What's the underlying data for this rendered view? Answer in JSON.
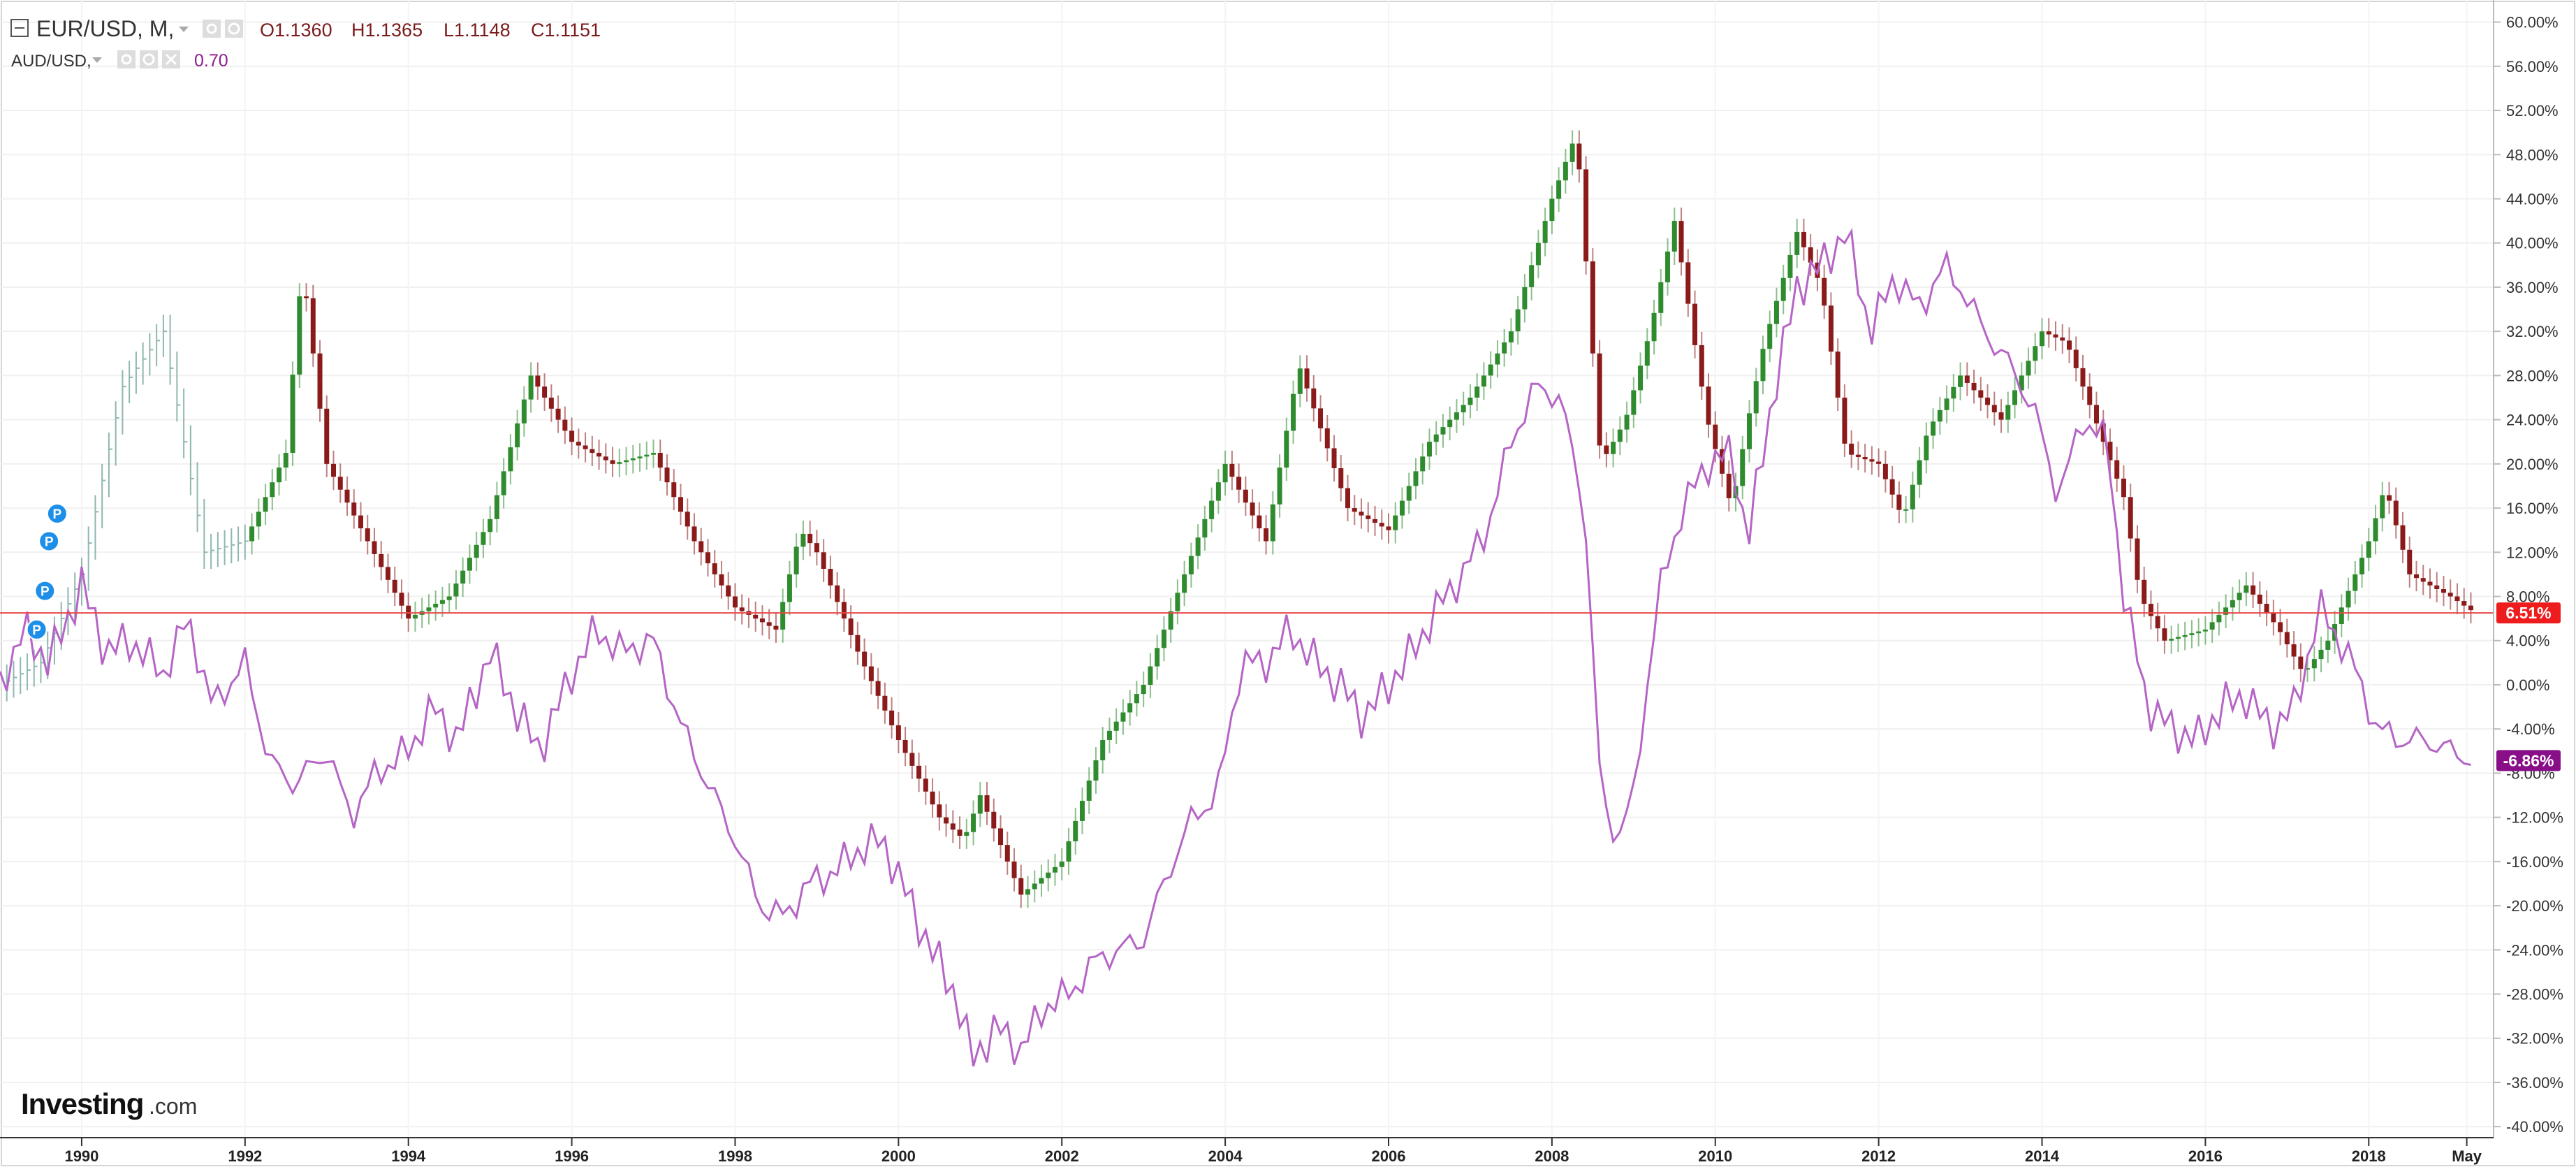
{
  "legend": {
    "main_symbol": "EUR/USD, M,",
    "open": "O1.1360",
    "high": "H1.1365",
    "low": "L1.1148",
    "close": "C1.1151",
    "compare_symbol": "AUD/USD,",
    "compare_value": "0.70"
  },
  "branding": {
    "logo_main": "Investing",
    "logo_suffix": ".com"
  },
  "colors": {
    "up_candle": "#2e8b2e",
    "down_candle": "#8b1a1a",
    "compare_line": "#b565c6",
    "last_price_line": "#e84a4a",
    "eur_tag": "#ee1c1c",
    "aud_tag": "#880f88",
    "pre_history_bar": "#8fb7b0"
  },
  "icons": [
    "collapse-icon",
    "dropdown-arrow-icon",
    "settings-icon",
    "eye-icon",
    "close-icon",
    "marker-p-icon"
  ],
  "chart_data": {
    "type": "line",
    "x_axis": {
      "ticks": [
        "1990",
        "1992",
        "1994",
        "1996",
        "1998",
        "2000",
        "2002",
        "2004",
        "2006",
        "2008",
        "2010",
        "2012",
        "2014",
        "2016",
        "2018",
        "May"
      ]
    },
    "y_axis": {
      "unit": "%",
      "range": [
        -41,
        62
      ],
      "ticks": [
        "60.00%",
        "56.00%",
        "52.00%",
        "48.00%",
        "44.00%",
        "40.00%",
        "36.00%",
        "32.00%",
        "28.00%",
        "24.00%",
        "20.00%",
        "16.00%",
        "12.00%",
        "8.00%",
        "4.00%",
        "0.00%",
        "-4.00%",
        "-8.00%",
        "-12.00%",
        "-16.00%",
        "-20.00%",
        "-24.00%",
        "-28.00%",
        "-32.00%",
        "-36.00%",
        "-40.00%"
      ],
      "tick_values": [
        60,
        56,
        52,
        48,
        44,
        40,
        36,
        32,
        28,
        24,
        20,
        16,
        12,
        8,
        4,
        0,
        -4,
        -8,
        -12,
        -16,
        -20,
        -24,
        -28,
        -32,
        -36,
        -40
      ]
    },
    "last_values": [
      {
        "label": "6.51%",
        "value": 6.51
      },
      {
        "label": "-6.86%",
        "value": -6.86
      }
    ],
    "series": [
      {
        "name": "EUR/USD",
        "style": "candlestick",
        "x": [
          1989.0,
          1989.5,
          1990.0,
          1990.5,
          1991.0,
          1991.5,
          1992.0,
          1992.5,
          1992.7,
          1993.0,
          1993.5,
          1994.0,
          1994.5,
          1995.0,
          1995.5,
          1996.0,
          1996.5,
          1997.0,
          1997.5,
          1998.0,
          1998.5,
          1998.8,
          1999.0,
          1999.5,
          2000.0,
          2000.5,
          2000.8,
          2001.0,
          2001.5,
          2002.0,
          2002.5,
          2003.0,
          2003.5,
          2004.0,
          2004.5,
          2004.9,
          2005.5,
          2006.0,
          2006.5,
          2007.0,
          2007.5,
          2008.0,
          2008.3,
          2008.6,
          2008.9,
          2009.2,
          2009.5,
          2009.9,
          2010.2,
          2010.4,
          2010.6,
          2011.0,
          2011.3,
          2011.6,
          2012.0,
          2012.3,
          2012.6,
          2013.0,
          2013.5,
          2014.0,
          2014.3,
          2014.6,
          2015.0,
          2015.2,
          2015.5,
          2016.0,
          2016.5,
          2016.9,
          2017.2,
          2017.5,
          2018.0,
          2018.2,
          2018.5,
          2019.0,
          2019.3
        ],
        "values": [
          0,
          2,
          10,
          27,
          32,
          12,
          13,
          21,
          38,
          20,
          13,
          6,
          8,
          15,
          28,
          22,
          20,
          21,
          13,
          7,
          5,
          14,
          12,
          3,
          -5,
          -12,
          -14,
          -10,
          -19,
          -16,
          -5,
          0,
          10,
          20,
          13,
          29,
          16,
          14,
          22,
          26,
          32,
          44,
          50,
          20,
          24,
          32,
          42,
          24,
          16,
          24,
          31,
          41,
          36,
          21,
          20,
          15,
          23,
          28,
          24,
          32,
          31,
          25,
          17,
          8,
          4,
          5,
          9,
          5,
          1,
          4,
          13,
          18,
          10,
          8,
          6.51
        ]
      },
      {
        "name": "AUD/USD",
        "style": "line",
        "x": [
          1989.0,
          1989.3,
          1989.6,
          1990.0,
          1990.3,
          1990.6,
          1991.0,
          1991.3,
          1991.6,
          1992.0,
          1992.3,
          1992.6,
          1993.0,
          1993.3,
          1993.6,
          1994.0,
          1994.3,
          1994.6,
          1995.0,
          1995.3,
          1995.6,
          1996.0,
          1996.3,
          1996.6,
          1997.0,
          1997.3,
          1997.6,
          1998.0,
          1998.3,
          1998.6,
          1998.9,
          1999.2,
          1999.5,
          1999.8,
          2000.1,
          2000.4,
          2000.7,
          2000.9,
          2001.2,
          2001.5,
          2001.8,
          2002.1,
          2002.4,
          2002.7,
          2003.0,
          2003.3,
          2003.6,
          2003.9,
          2004.2,
          2004.5,
          2004.8,
          2005.1,
          2005.4,
          2005.7,
          2006.0,
          2006.3,
          2006.6,
          2006.9,
          2007.2,
          2007.5,
          2007.8,
          2008.1,
          2008.4,
          2008.6,
          2008.8,
          2009.0,
          2009.3,
          2009.6,
          2009.9,
          2010.2,
          2010.4,
          2010.7,
          2011.0,
          2011.3,
          2011.6,
          2011.9,
          2012.2,
          2012.5,
          2012.8,
          2013.0,
          2013.3,
          2013.6,
          2013.9,
          2014.2,
          2014.5,
          2014.8,
          2015.0,
          2015.3,
          2015.6,
          2015.9,
          2016.2,
          2016.5,
          2016.8,
          2017.1,
          2017.4,
          2017.8,
          2018.1,
          2018.4,
          2018.7,
          2019.0,
          2019.3
        ],
        "values": [
          0,
          5,
          2,
          9,
          3,
          4,
          1,
          6,
          -2,
          2,
          -7,
          -9,
          -6,
          -12,
          -8,
          -6,
          -2,
          -5,
          3,
          -2,
          -6,
          1,
          5,
          3,
          4,
          -3,
          -8,
          -14,
          -20,
          -21,
          -18,
          -17,
          -15,
          -14,
          -19,
          -24,
          -28,
          -34,
          -31,
          -33,
          -29,
          -28,
          -25,
          -24,
          -23,
          -17,
          -12,
          -10,
          2,
          2,
          5,
          2,
          0,
          -3,
          0,
          3,
          7,
          10,
          14,
          22,
          27,
          26,
          16,
          -10,
          -14,
          -10,
          8,
          16,
          20,
          21,
          13,
          26,
          36,
          38,
          41,
          32,
          37,
          34,
          38,
          36,
          32,
          29,
          25,
          17,
          24,
          22,
          8,
          -2,
          -4,
          -5,
          -2,
          -1,
          -4,
          -2,
          7,
          2,
          -4,
          -5,
          -5,
          -6,
          -6.86
        ]
      }
    ]
  }
}
